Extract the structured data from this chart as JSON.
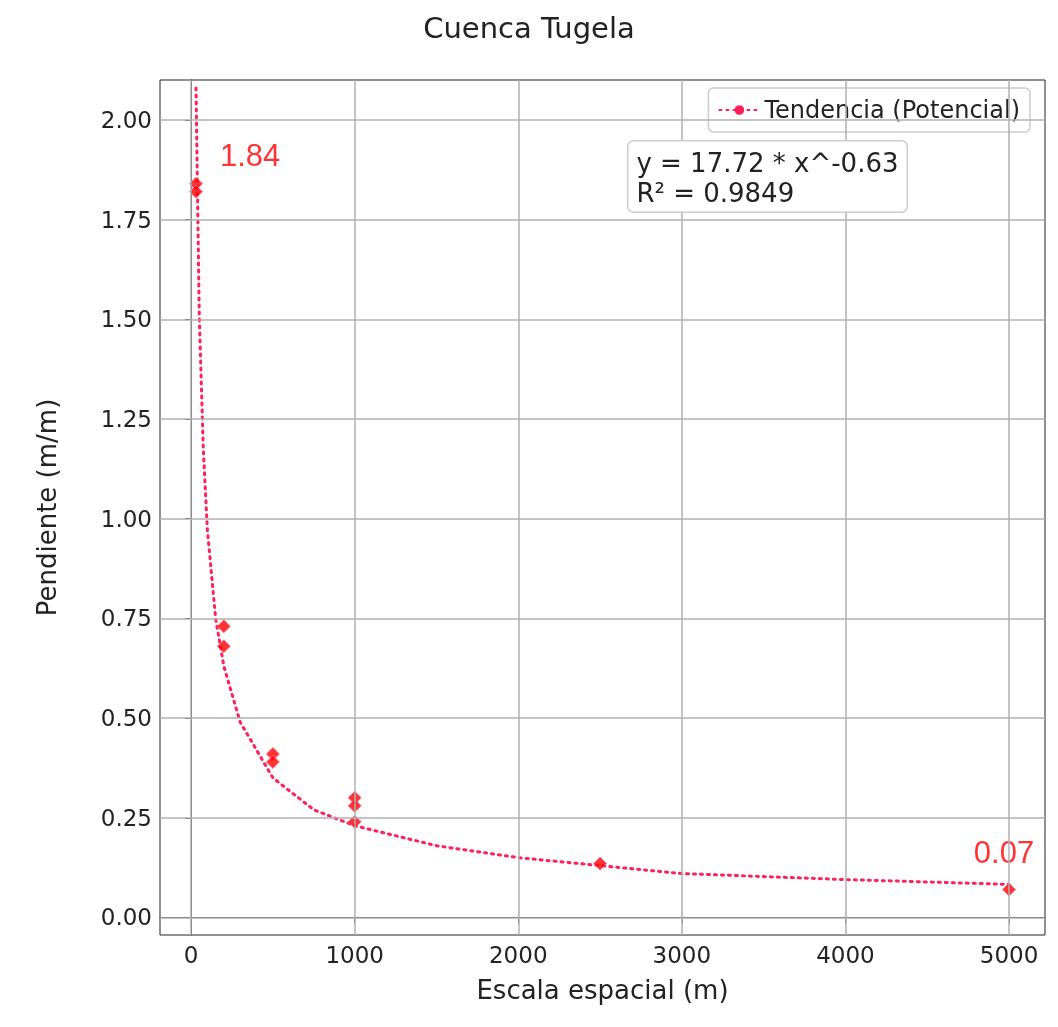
{
  "chart_data": {
    "type": "scatter",
    "title": "Cuenca Tugela",
    "xlabel": "Escala espacial (m)",
    "ylabel": "Pendiente (m/m)",
    "annotations": [
      "y = 17.72 * x^-0.63",
      "R² = 0.9849"
    ],
    "xlim": [
      -190,
      5220
    ],
    "xticks": [
      0,
      1000,
      2000,
      3000,
      4000,
      5000
    ],
    "ylim": [
      -0.044,
      2.1
    ],
    "yticks": [
      {
        "value": 0,
        "label": "0.00"
      },
      {
        "value": 0.25,
        "label": "0.25"
      },
      {
        "value": 0.5,
        "label": "0.50"
      },
      {
        "value": 0.75,
        "label": "0.75"
      },
      {
        "value": 1,
        "label": "1.00"
      },
      {
        "value": 1.25,
        "label": "1.25"
      },
      {
        "value": 1.5,
        "label": "1.50"
      },
      {
        "value": 1.75,
        "label": "1.75"
      },
      {
        "value": 2,
        "label": "2.00"
      }
    ],
    "grid": true,
    "legend": "top right",
    "series": [
      {
        "color": "#ff0000",
        "marker": "diamond",
        "x": [
          30,
          30,
          200,
          200,
          500,
          500,
          1000,
          1000,
          1000,
          2500,
          5000
        ],
        "values": [
          1.84,
          1.82,
          0.73,
          0.68,
          0.41,
          0.39,
          0.3,
          0.28,
          0.24,
          0.135,
          0.07
        ],
        "value_labels": [
          "1.84",
          null,
          null,
          null,
          null,
          null,
          null,
          null,
          null,
          null,
          "0.07"
        ]
      },
      {
        "type": "line",
        "name": "Tendencia (Potencial)",
        "color": "#ff1f5a",
        "line_style": "dotted",
        "marker": "none",
        "x": [
          30,
          50,
          75,
          100,
          150,
          200,
          300,
          500,
          750,
          1000,
          1500,
          2000,
          2500,
          3000,
          4000,
          5000
        ],
        "values": [
          2.08,
          1.51,
          1.17,
          0.97,
          0.75,
          0.63,
          0.49,
          0.35,
          0.27,
          0.23,
          0.18,
          0.15,
          0.13,
          0.11,
          0.095,
          0.083
        ]
      }
    ]
  }
}
